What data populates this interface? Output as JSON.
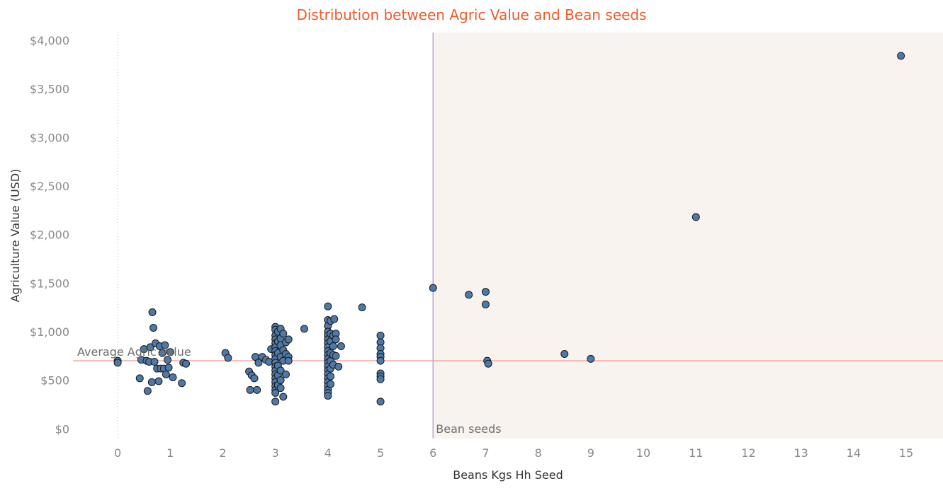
{
  "chart_data": {
    "type": "scatter",
    "title": "Distribution between Agric Value and Bean seeds",
    "xlabel": "Beans Kgs Hh Seed",
    "ylabel": "Agriculture Value (USD)",
    "xlim": [
      -0.85,
      15.7
    ],
    "ylim": [
      -100,
      4080
    ],
    "x_ticks": [
      "0",
      "1",
      "2",
      "3",
      "4",
      "5",
      "6",
      "7",
      "8",
      "9",
      "10",
      "11",
      "12",
      "13",
      "14",
      "15"
    ],
    "y_ticks": [
      {
        "value": 0,
        "label": "$0"
      },
      {
        "value": 500,
        "label": "$500"
      },
      {
        "value": 1000,
        "label": "$1,000"
      },
      {
        "value": 1500,
        "label": "$1,500"
      },
      {
        "value": 2000,
        "label": "$2,000"
      },
      {
        "value": 2500,
        "label": "$2,500"
      },
      {
        "value": 3000,
        "label": "$3,000"
      },
      {
        "value": 3500,
        "label": "$3,500"
      },
      {
        "value": 4000,
        "label": "$4,000"
      }
    ],
    "reference_lines": {
      "average": {
        "axis": "y",
        "value": 700,
        "label": "Average Agric Value"
      },
      "threshold": {
        "axis": "x",
        "value": 6,
        "label": "Bean seeds"
      }
    },
    "grid": false,
    "colors": {
      "title": "#f05a28",
      "points": "#4e79a7",
      "point_edge": "#1a1a1a",
      "average_line": "#f4a29a",
      "threshold_line": "#b8a8cc",
      "shaded_region": "#f9f3ef",
      "zero_line": "#bbbbbb"
    },
    "points": [
      [
        0,
        700
      ],
      [
        0,
        680
      ],
      [
        0.42,
        520
      ],
      [
        0.45,
        710
      ],
      [
        0.5,
        820
      ],
      [
        0.55,
        700
      ],
      [
        0.57,
        390
      ],
      [
        0.6,
        690
      ],
      [
        0.62,
        840
      ],
      [
        0.65,
        480
      ],
      [
        0.66,
        1200
      ],
      [
        0.68,
        1040
      ],
      [
        0.7,
        690
      ],
      [
        0.72,
        880
      ],
      [
        0.75,
        620
      ],
      [
        0.78,
        490
      ],
      [
        0.8,
        850
      ],
      [
        0.82,
        620
      ],
      [
        0.85,
        780
      ],
      [
        0.88,
        620
      ],
      [
        0.9,
        860
      ],
      [
        0.92,
        560
      ],
      [
        0.95,
        710
      ],
      [
        0.97,
        630
      ],
      [
        1,
        790
      ],
      [
        1.05,
        530
      ],
      [
        1.22,
        470
      ],
      [
        1.25,
        680
      ],
      [
        1.3,
        670
      ],
      [
        2.05,
        780
      ],
      [
        2.1,
        730
      ],
      [
        2.5,
        590
      ],
      [
        2.52,
        400
      ],
      [
        2.55,
        550
      ],
      [
        2.6,
        520
      ],
      [
        2.62,
        740
      ],
      [
        2.65,
        400
      ],
      [
        2.68,
        680
      ],
      [
        2.75,
        740
      ],
      [
        2.82,
        710
      ],
      [
        2.88,
        690
      ],
      [
        2.92,
        820
      ],
      [
        3,
        1050
      ],
      [
        3,
        1020
      ],
      [
        3,
        960
      ],
      [
        3,
        920
      ],
      [
        3,
        880
      ],
      [
        3,
        840
      ],
      [
        3,
        800
      ],
      [
        3,
        760
      ],
      [
        3,
        720
      ],
      [
        3,
        680
      ],
      [
        3,
        640
      ],
      [
        3,
        600
      ],
      [
        3,
        560
      ],
      [
        3,
        520
      ],
      [
        3,
        480
      ],
      [
        3,
        440
      ],
      [
        3,
        400
      ],
      [
        3,
        370
      ],
      [
        3,
        280
      ],
      [
        3.05,
        1000
      ],
      [
        3.05,
        900
      ],
      [
        3.05,
        780
      ],
      [
        3.05,
        650
      ],
      [
        3.05,
        550
      ],
      [
        3.05,
        450
      ],
      [
        3.1,
        1030
      ],
      [
        3.1,
        930
      ],
      [
        3.1,
        860
      ],
      [
        3.1,
        740
      ],
      [
        3.1,
        600
      ],
      [
        3.1,
        500
      ],
      [
        3.1,
        420
      ],
      [
        3.15,
        980
      ],
      [
        3.15,
        810
      ],
      [
        3.15,
        700
      ],
      [
        3.15,
        330
      ],
      [
        3.2,
        890
      ],
      [
        3.2,
        770
      ],
      [
        3.2,
        560
      ],
      [
        3.25,
        920
      ],
      [
        3.25,
        740
      ],
      [
        3.25,
        700
      ],
      [
        3.55,
        1030
      ],
      [
        4,
        1260
      ],
      [
        4,
        1120
      ],
      [
        4,
        1060
      ],
      [
        4,
        1000
      ],
      [
        4,
        960
      ],
      [
        4,
        920
      ],
      [
        4,
        880
      ],
      [
        4,
        840
      ],
      [
        4,
        800
      ],
      [
        4,
        760
      ],
      [
        4,
        720
      ],
      [
        4,
        680
      ],
      [
        4,
        640
      ],
      [
        4,
        600
      ],
      [
        4,
        560
      ],
      [
        4,
        520
      ],
      [
        4,
        480
      ],
      [
        4,
        440
      ],
      [
        4,
        400
      ],
      [
        4,
        370
      ],
      [
        4,
        340
      ],
      [
        4.05,
        1110
      ],
      [
        4.05,
        980
      ],
      [
        4.05,
        900
      ],
      [
        4.05,
        780
      ],
      [
        4.05,
        700
      ],
      [
        4.05,
        620
      ],
      [
        4.05,
        540
      ],
      [
        4.05,
        460
      ],
      [
        4.1,
        960
      ],
      [
        4.1,
        850
      ],
      [
        4.1,
        760
      ],
      [
        4.1,
        660
      ],
      [
        4.12,
        1130
      ],
      [
        4.15,
        980
      ],
      [
        4.15,
        920
      ],
      [
        4.15,
        750
      ],
      [
        4.2,
        640
      ],
      [
        4.25,
        850
      ],
      [
        4.65,
        1250
      ],
      [
        5,
        960
      ],
      [
        5,
        890
      ],
      [
        5,
        830
      ],
      [
        5,
        770
      ],
      [
        5,
        740
      ],
      [
        5,
        700
      ],
      [
        5,
        570
      ],
      [
        5,
        540
      ],
      [
        5,
        510
      ],
      [
        5,
        280
      ],
      [
        6,
        1450
      ],
      [
        6.68,
        1380
      ],
      [
        7,
        1410
      ],
      [
        7,
        1280
      ],
      [
        7.03,
        700
      ],
      [
        7.05,
        670
      ],
      [
        8.5,
        770
      ],
      [
        9,
        720
      ],
      [
        11,
        2180
      ],
      [
        14.9,
        3840
      ]
    ]
  }
}
